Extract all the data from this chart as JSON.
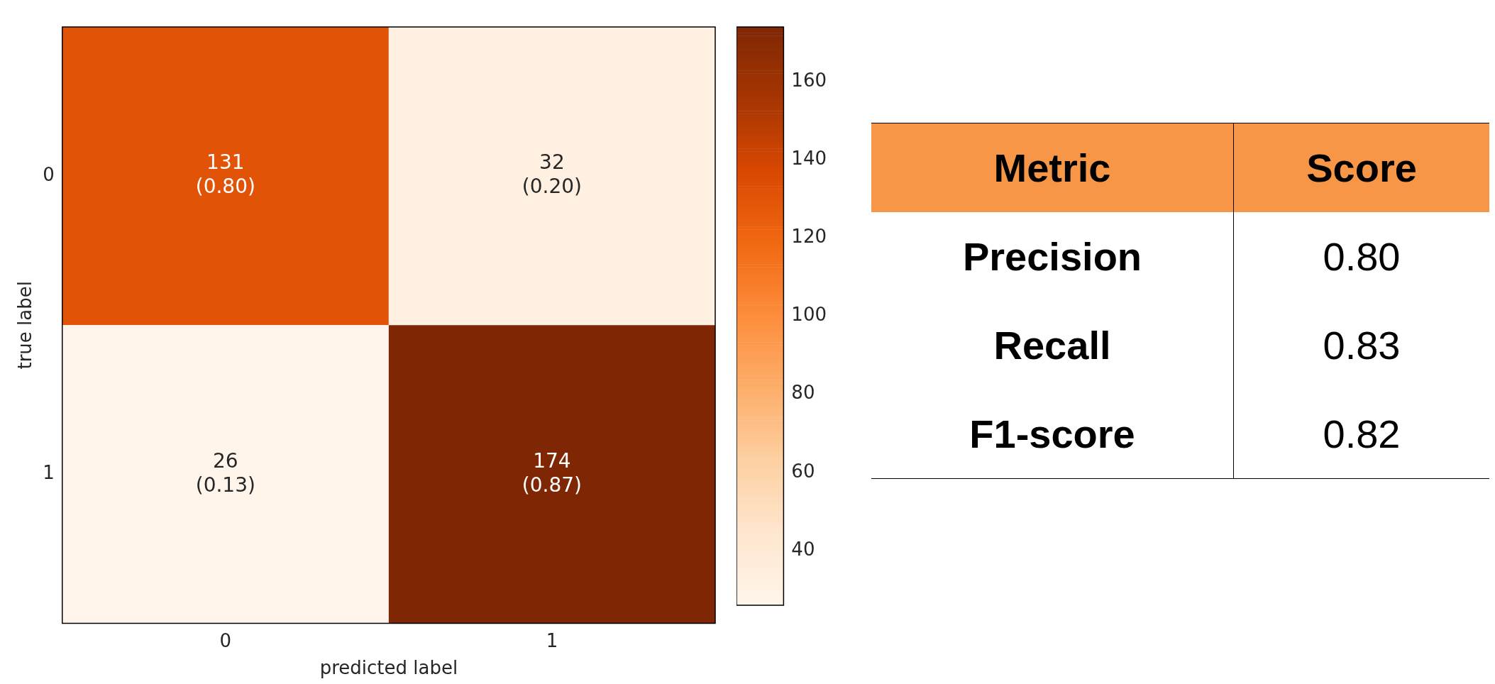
{
  "chart_data": [
    {
      "type": "heatmap",
      "xlabel": "predicted label",
      "ylabel": "true label",
      "categories": [
        "0",
        "1"
      ],
      "y_categories": [
        "0",
        "1"
      ],
      "cells": [
        [
          131,
          32
        ],
        [
          26,
          174
        ]
      ],
      "cell_labels": [
        [
          "131\n(0.80)",
          "32\n(0.20)"
        ],
        [
          "26\n(0.13)",
          "174\n(0.87)"
        ]
      ],
      "clim": [
        26,
        174
      ],
      "cticks": [
        40,
        60,
        80,
        100,
        120,
        140,
        160
      ]
    },
    {
      "type": "other",
      "annotations": [
        "Metric",
        "Score",
        "Precision",
        "0.80",
        "Recall",
        "0.83",
        "F1-score",
        "0.82"
      ]
    }
  ]
}
